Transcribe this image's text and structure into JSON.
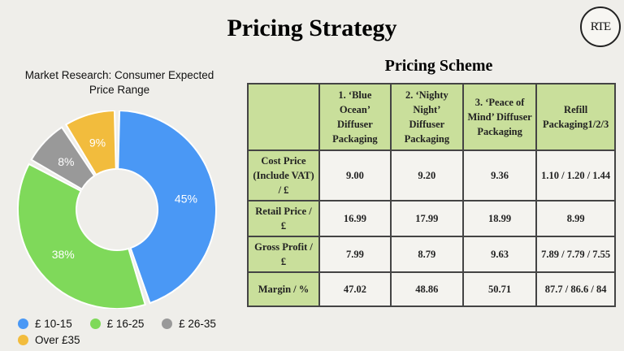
{
  "slide": {
    "title": "Pricing Strategy",
    "logo_text": "RTE"
  },
  "chart": {
    "title_line1": "Market Research: Consumer Expected",
    "title_line2": "Price Range"
  },
  "chart_data": {
    "type": "pie",
    "categories": [
      "£ 10-15",
      "£ 16-25",
      "£ 26-35",
      "Over £35"
    ],
    "values": [
      45,
      38,
      8,
      9
    ],
    "labels": [
      "45%",
      "38%",
      "8%",
      "9%"
    ],
    "colors": [
      "#4a98f5",
      "#7fd95a",
      "#999999",
      "#f2bc3d"
    ],
    "donut": true,
    "legend_position": "bottom"
  },
  "scheme": {
    "title": "Pricing Scheme",
    "headers": [
      "1. ‘Blue Ocean’ Diffuser Packaging",
      "2. ‘Nighty Night’ Diffuser Packaging",
      "3. ‘Peace of Mind’ Diffuser Packaging",
      "Refill Packaging1/2/3"
    ],
    "rows": [
      {
        "label": "Cost Price (Include VAT) / £",
        "values": [
          "9.00",
          "9.20",
          "9.36",
          "1.10 / 1.20 / 1.44"
        ]
      },
      {
        "label": "Retail Price / £",
        "values": [
          "16.99",
          "17.99",
          "18.99",
          "8.99"
        ]
      },
      {
        "label": "Gross Profit / £",
        "values": [
          "7.99",
          "8.79",
          "9.63",
          "7.89 / 7.79 / 7.55"
        ]
      },
      {
        "label": "Margin / %",
        "values": [
          "47.02",
          "48.86",
          "50.71",
          "87.7 / 86.6 / 84"
        ]
      }
    ]
  }
}
